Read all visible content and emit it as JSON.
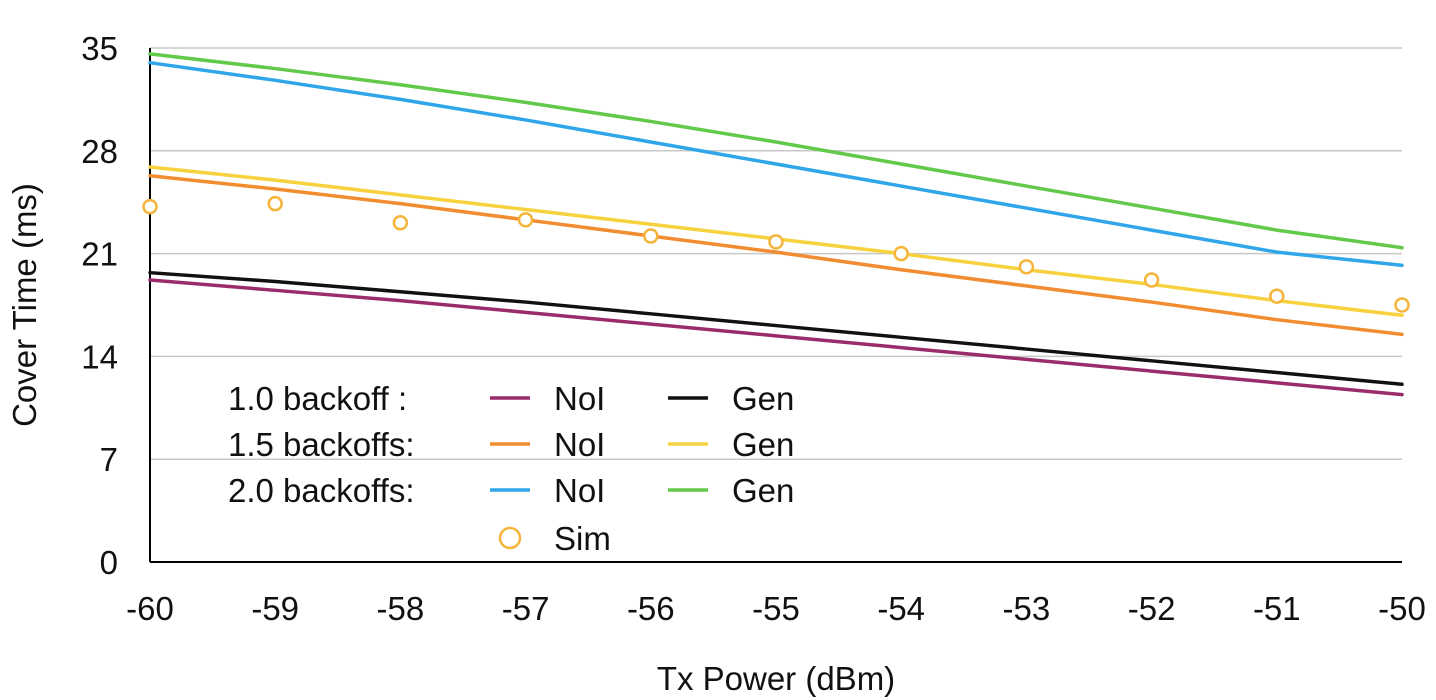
{
  "chart_data": {
    "type": "line",
    "title": "",
    "xlabel": "Tx Power (dBm)",
    "ylabel": "Cover Time (ms)",
    "xlim": [
      -60,
      -50
    ],
    "ylim": [
      0,
      35
    ],
    "x": [
      -60,
      -59,
      -58,
      -57,
      -56,
      -55,
      -54,
      -53,
      -52,
      -51,
      -50
    ],
    "x_ticks": [
      "-60",
      "-59",
      "-58",
      "-57",
      "-56",
      "-55",
      "-54",
      "-53",
      "-52",
      "-51",
      "-50"
    ],
    "y_ticks": [
      "0",
      "7",
      "14",
      "21",
      "28",
      "35"
    ],
    "grid": "horizontal",
    "legend_position": "bottom-left",
    "legend_rows": [
      {
        "label": "1.0 backoff :",
        "entries": [
          "1.0 NoI",
          "1.0 Gen"
        ]
      },
      {
        "label": "1.5 backoffs:",
        "entries": [
          "1.5 NoI",
          "1.5 Gen"
        ]
      },
      {
        "label": "2.0 backoffs:",
        "entries": [
          "2.0 NoI",
          "2.0 Gen"
        ]
      },
      {
        "label": "",
        "entries": [
          "Sim"
        ]
      }
    ],
    "series": [
      {
        "name": "NoI",
        "id": "1.0 NoI",
        "color": "#9b2c6c",
        "marker": "line",
        "values": [
          19.2,
          18.5,
          17.8,
          17.0,
          16.2,
          15.4,
          14.6,
          13.8,
          13.0,
          12.2,
          11.4
        ]
      },
      {
        "name": "Gen",
        "id": "1.0 Gen",
        "color": "#111111",
        "marker": "line",
        "values": [
          19.7,
          19.1,
          18.4,
          17.7,
          16.9,
          16.1,
          15.3,
          14.5,
          13.7,
          12.9,
          12.1
        ]
      },
      {
        "name": "NoI",
        "id": "1.5 NoI",
        "color": "#f28c30",
        "marker": "line",
        "values": [
          26.3,
          25.4,
          24.4,
          23.3,
          22.2,
          21.1,
          19.9,
          18.8,
          17.7,
          16.5,
          15.5
        ]
      },
      {
        "name": "Gen",
        "id": "1.5 Gen",
        "color": "#f7d23e",
        "marker": "line",
        "values": [
          26.9,
          26.0,
          25.0,
          24.0,
          23.0,
          22.0,
          21.0,
          19.9,
          18.9,
          17.8,
          16.8
        ]
      },
      {
        "name": "NoI",
        "id": "2.0 NoI",
        "color": "#2fa6ea",
        "marker": "line",
        "values": [
          34.0,
          32.8,
          31.5,
          30.1,
          28.6,
          27.1,
          25.6,
          24.1,
          22.6,
          21.1,
          20.2
        ]
      },
      {
        "name": "Gen",
        "id": "2.0 Gen",
        "color": "#62c94a",
        "marker": "line",
        "values": [
          34.6,
          33.6,
          32.5,
          31.3,
          30.0,
          28.6,
          27.1,
          25.6,
          24.1,
          22.6,
          21.4
        ]
      },
      {
        "name": "Sim",
        "id": "Sim",
        "color": "#f5b53a",
        "marker": "circle",
        "values": [
          24.2,
          24.4,
          23.1,
          23.3,
          22.2,
          21.8,
          21.0,
          20.1,
          19.2,
          18.1,
          17.5
        ]
      }
    ]
  }
}
